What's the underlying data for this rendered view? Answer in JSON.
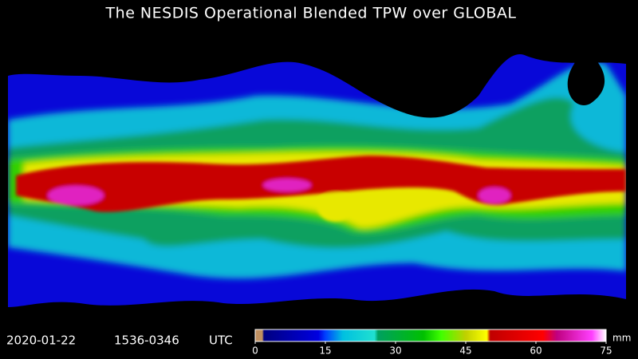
{
  "header": {
    "title": "The NESDIS Operational Blended TPW over GLOBAL"
  },
  "footer": {
    "date": "2020-01-22",
    "time_range": "1536-0346",
    "timezone": "UTC"
  },
  "colorbar": {
    "range": [
      0,
      75
    ],
    "ticks": [
      0,
      15,
      30,
      45,
      60,
      75
    ],
    "unit": "mm"
  }
}
